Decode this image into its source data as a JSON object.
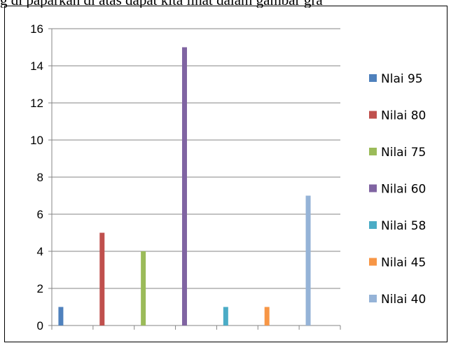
{
  "caption": {
    "text": "g di paparkan di atas dapat kita lihat dalam gambar gra"
  },
  "chart_data": {
    "type": "bar",
    "ylim": [
      0,
      16
    ],
    "yticks": [
      0,
      2,
      4,
      6,
      8,
      10,
      12,
      14,
      16
    ],
    "grid": "horizontal",
    "legend_position": "right",
    "series": [
      {
        "name": "Nlai 95",
        "color": "#4F81BD",
        "category_index": 0,
        "value": 1
      },
      {
        "name": "Nilai 80",
        "color": "#C0504D",
        "category_index": 1,
        "value": 5
      },
      {
        "name": "Nilai 75",
        "color": "#9BBB59",
        "category_index": 2,
        "value": 4
      },
      {
        "name": "Nilai 60",
        "color": "#8064A2",
        "category_index": 3,
        "value": 15
      },
      {
        "name": "Nilai 58",
        "color": "#4BACC6",
        "category_index": 4,
        "value": 1
      },
      {
        "name": "Nilai 45",
        "color": "#F79646",
        "category_index": 5,
        "value": 1
      },
      {
        "name": "Nilai 40",
        "color": "#95B3D7",
        "category_index": 6,
        "value": 7
      }
    ]
  }
}
